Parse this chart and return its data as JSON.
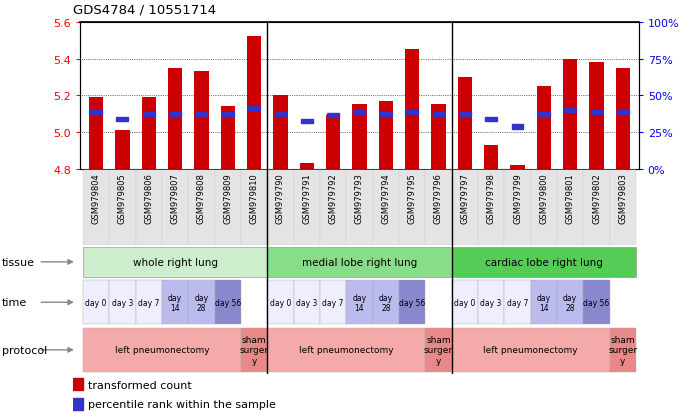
{
  "title": "GDS4784 / 10551714",
  "samples": [
    "GSM979804",
    "GSM979805",
    "GSM979806",
    "GSM979807",
    "GSM979808",
    "GSM979809",
    "GSM979810",
    "GSM979790",
    "GSM979791",
    "GSM979792",
    "GSM979793",
    "GSM979794",
    "GSM979795",
    "GSM979796",
    "GSM979797",
    "GSM979798",
    "GSM979799",
    "GSM979800",
    "GSM979801",
    "GSM979802",
    "GSM979803"
  ],
  "bar_heights": [
    5.19,
    5.01,
    5.19,
    5.35,
    5.33,
    5.14,
    5.52,
    5.2,
    4.83,
    5.09,
    5.15,
    5.17,
    5.45,
    5.15,
    5.3,
    4.93,
    4.82,
    5.25,
    5.4,
    5.38,
    5.35
  ],
  "blue_y": [
    5.11,
    5.07,
    5.1,
    5.1,
    5.1,
    5.1,
    5.13,
    5.1,
    5.06,
    5.09,
    5.11,
    5.1,
    5.11,
    5.1,
    5.1,
    5.07,
    5.03,
    5.1,
    5.12,
    5.11,
    5.11
  ],
  "ylim": [
    4.8,
    5.6
  ],
  "yticks_left": [
    4.8,
    5.0,
    5.2,
    5.4,
    5.6
  ],
  "yticks_right": [
    0,
    25,
    50,
    75,
    100
  ],
  "bar_color": "#cc0000",
  "blue_color": "#3333cc",
  "bar_bottom": 4.8,
  "tissue_groups": [
    {
      "label": "whole right lung",
      "start": 0,
      "end": 7,
      "color": "#cceecc"
    },
    {
      "label": "medial lobe right lung",
      "start": 7,
      "end": 14,
      "color": "#88dd88"
    },
    {
      "label": "cardiac lobe right lung",
      "start": 14,
      "end": 21,
      "color": "#55cc55"
    }
  ],
  "time_label_map": {
    "0": "day 0",
    "1": "day 3",
    "2": "day 7",
    "3": "day\n14",
    "4": "day\n28",
    "5": "day 56",
    "7": "day 0",
    "8": "day 3",
    "9": "day 7",
    "10": "day\n14",
    "11": "day\n28",
    "12": "day 56",
    "14": "day 0",
    "15": "day 3",
    "16": "day 7",
    "17": "day\n14",
    "18": "day\n28",
    "19": "day 56"
  },
  "time_color_map": {
    "0": "#eeeeff",
    "1": "#eeeeff",
    "2": "#eeeeff",
    "3": "#bbbbee",
    "4": "#bbbbee",
    "5": "#8888cc",
    "7": "#eeeeff",
    "8": "#eeeeff",
    "9": "#eeeeff",
    "10": "#bbbbee",
    "11": "#bbbbee",
    "12": "#8888cc",
    "14": "#eeeeff",
    "15": "#eeeeff",
    "16": "#eeeeff",
    "17": "#bbbbee",
    "18": "#bbbbee",
    "19": "#8888cc"
  },
  "protocol_groups": [
    {
      "label": "left pneumonectomy",
      "start": 0,
      "end": 6,
      "color": "#f4aaaa"
    },
    {
      "label": "sham\nsurger\ny",
      "start": 6,
      "end": 7,
      "color": "#e88888"
    },
    {
      "label": "left pneumonectomy",
      "start": 7,
      "end": 13,
      "color": "#f4aaaa"
    },
    {
      "label": "sham\nsurger\ny",
      "start": 13,
      "end": 14,
      "color": "#e88888"
    },
    {
      "label": "left pneumonectomy",
      "start": 14,
      "end": 20,
      "color": "#f4aaaa"
    },
    {
      "label": "sham\nsurger\ny",
      "start": 20,
      "end": 21,
      "color": "#e88888"
    }
  ],
  "n_samples": 21,
  "sep_indices": [
    7,
    14
  ]
}
